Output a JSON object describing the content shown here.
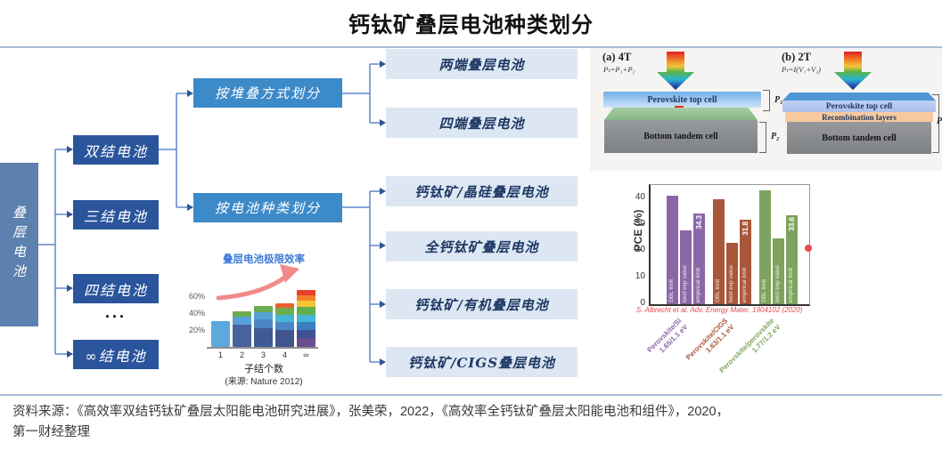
{
  "title": "钙钛矿叠层电池种类划分",
  "frame": {
    "divider_color": "#a9bcd6"
  },
  "source_note": {
    "line1": "资料来源：《高效率双结钙钛矿叠层太阳能电池研究进展》，张美荣，2022，《高效率全钙钛矿叠层太阳能电池和组件》，2020，",
    "line2": "第一财经整理"
  },
  "tree": {
    "root": "叠层电池",
    "junctions": [
      "双结电池",
      "三结电池",
      "四结电池",
      "∞结电池"
    ],
    "ellipsis": "...",
    "categories": [
      "按堆叠方式划分",
      "按电池种类划分"
    ],
    "stack_leaves": [
      "两端叠层电池",
      "四端叠层电池"
    ],
    "type_leaves": [
      "钙钛矿/晶硅叠层电池",
      "全钙钛矿叠层电池",
      "钙钛矿/有机叠层电池",
      "钙钛矿/CIGS叠层电池"
    ],
    "colors": {
      "root_bg": "#5d81ae",
      "junction_bg": "#2a549b",
      "category_bg": "#3d8ac9",
      "leaf_bg": "#dce7f3",
      "leaf_text": "#1f3864",
      "line": "#4472c4"
    }
  },
  "panel_4t": {
    "label": "(a) 4T",
    "formula": "Pₜ=P₁+P₂",
    "top_cell": "Perovskite top cell",
    "bottom_cell": "Bottom tandem cell",
    "p1": "P₁",
    "p2": "P₂",
    "colors": {
      "top_cell": "#b7d6f4",
      "interlayer": "#8fbc8d",
      "bottom_cell": "#8b8e91"
    }
  },
  "panel_2t": {
    "label": "(b) 2T",
    "formula": "Pₜ=I(V₁+V₂)",
    "top_cell": "Perovskite top cell",
    "recombination": "Recombination layers",
    "bottom_cell": "Bottom tandem cell",
    "p": "P",
    "colors": {
      "top_cell": "#b9ccf1",
      "recombination": "#f6c99e",
      "bottom_cell": "#8b8e91"
    }
  },
  "chart_data": [
    {
      "type": "bar",
      "title": "叠层电池极限效率",
      "categories": [
        "1",
        "2",
        "3",
        "4",
        "∞"
      ],
      "values": [
        31,
        42,
        49,
        52,
        68
      ],
      "unit": "%",
      "xlabel": "子结个数",
      "caption": "(来源: Nature 2012)",
      "yticks": [
        20,
        40,
        60
      ],
      "ytick_suffix": "%",
      "ylim": [
        0,
        75
      ],
      "title_color": "#3e7bd6",
      "arrow_color": "#f18a8a",
      "segments": [
        [
          {
            "c": "#5ba9de",
            "to": 31
          }
        ],
        [
          {
            "c": "#46639c",
            "to": 26
          },
          {
            "c": "#58a0d8",
            "to": 36
          },
          {
            "c": "#6dac50",
            "to": 42
          }
        ],
        [
          {
            "c": "#3f5a94",
            "to": 22
          },
          {
            "c": "#4d86c6",
            "to": 33
          },
          {
            "c": "#52a3d4",
            "to": 41
          },
          {
            "c": "#6dac50",
            "to": 49
          }
        ],
        [
          {
            "c": "#40548f",
            "to": 20
          },
          {
            "c": "#4d86c6",
            "to": 30
          },
          {
            "c": "#45b5d6",
            "to": 38
          },
          {
            "c": "#6dac50",
            "to": 47
          },
          {
            "c": "#e8622d",
            "to": 52
          }
        ],
        [
          {
            "c": "#6a4e8e",
            "to": 10
          },
          {
            "c": "#3f5096",
            "to": 20
          },
          {
            "c": "#3a7fc1",
            "to": 30
          },
          {
            "c": "#45b5d6",
            "to": 38
          },
          {
            "c": "#5fae4e",
            "to": 48
          },
          {
            "c": "#f3c53a",
            "to": 55
          },
          {
            "c": "#f07f28",
            "to": 61
          },
          {
            "c": "#e8402a",
            "to": 68
          }
        ]
      ]
    },
    {
      "type": "bar",
      "ylabel": "PCE (%)",
      "yticks": [
        0,
        10,
        20,
        30,
        40
      ],
      "ylim": [
        0,
        45
      ],
      "bar_labels": [
        "DBL limit",
        "best exp value",
        "empirical limit"
      ],
      "groups": [
        {
          "name": "Perovskite/Si",
          "bandgap": "1.65/1.1 eV",
          "color": "#8c67a7",
          "values": [
            41.0,
            27.8,
            34.3
          ],
          "value_label": "34.3"
        },
        {
          "name": "Perovskite/CIGS",
          "bandgap": "1.63/1.1 eV",
          "color": "#a9573b",
          "values": [
            39.5,
            23.3,
            31.8
          ],
          "value_label": "31.8"
        },
        {
          "name": "Perovskite/perovskite",
          "bandgap": "1.77/1.2 eV",
          "color": "#7da35f",
          "values": [
            43.0,
            24.7,
            33.6
          ],
          "value_label": "33.6"
        }
      ],
      "citation": "S. Albrecht et al. Adv. Energy Mater. 1904102 (2020)",
      "citation_color": "#e8474b",
      "marker_color": "#ea4a4a"
    }
  ]
}
